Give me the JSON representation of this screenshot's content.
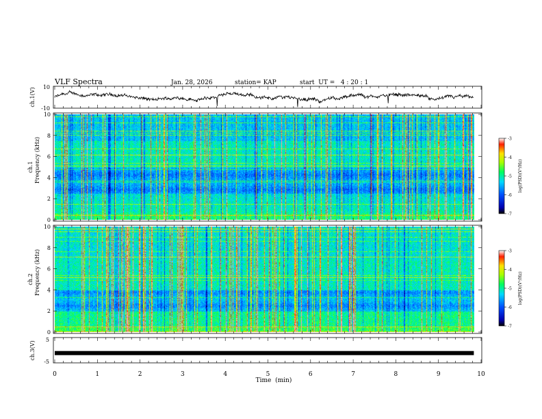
{
  "header": {
    "title": "VLF Spectra",
    "date": "Jan. 28, 2026",
    "station": "station= KAP",
    "start_ut": "start  UT =   4 : 20 : 1"
  },
  "chart_data": [
    {
      "type": "line",
      "id": "ch1_waveform",
      "ylabel": "ch.1(V)",
      "ylim": [
        -10,
        10
      ],
      "ytick_labels": [
        "10",
        "-10"
      ],
      "x_range": [
        0,
        9.83
      ],
      "approx_mean": 0,
      "approx_amplitude": 5
    },
    {
      "type": "heatmap",
      "id": "ch1_spectrogram",
      "ylabel_top": "ch.1",
      "ylabel": "Frequency (kHz)",
      "ylim": [
        0,
        10
      ],
      "ytick_labels": [
        "0",
        "2",
        "4",
        "6",
        "8",
        "10"
      ],
      "x_range": [
        0,
        9.83
      ],
      "colorbar": {
        "label": "log(PSD)(V²/Hz)",
        "range": [
          -7,
          -3
        ],
        "tick_labels": [
          "-3",
          "-4",
          "-5",
          "-6",
          "-7"
        ]
      }
    },
    {
      "type": "heatmap",
      "id": "ch2_spectrogram",
      "ylabel_top": "ch.2",
      "ylabel": "Frequency (kHz)",
      "ylim": [
        0,
        10
      ],
      "ytick_labels": [
        "0",
        "2",
        "4",
        "6",
        "8",
        "10"
      ],
      "x_range": [
        0,
        9.83
      ],
      "colorbar": {
        "label": "log(PSD)(V²/Hz)",
        "range": [
          -7,
          -3
        ],
        "tick_labels": [
          "-3",
          "-4",
          "-5",
          "-6",
          "-7"
        ]
      }
    },
    {
      "type": "line",
      "id": "ch3_signal",
      "ylabel": "ch.3(V)",
      "ylim": [
        -5,
        5
      ],
      "ytick_labels": [
        "5",
        "-5"
      ],
      "x_range": [
        0,
        9.83
      ],
      "approx_level": -1.2
    }
  ],
  "xaxis": {
    "label": "Time  (min)",
    "range": [
      0,
      10
    ],
    "tick_labels": [
      "0",
      "1",
      "2",
      "3",
      "4",
      "5",
      "6",
      "7",
      "8",
      "9",
      "10"
    ]
  }
}
